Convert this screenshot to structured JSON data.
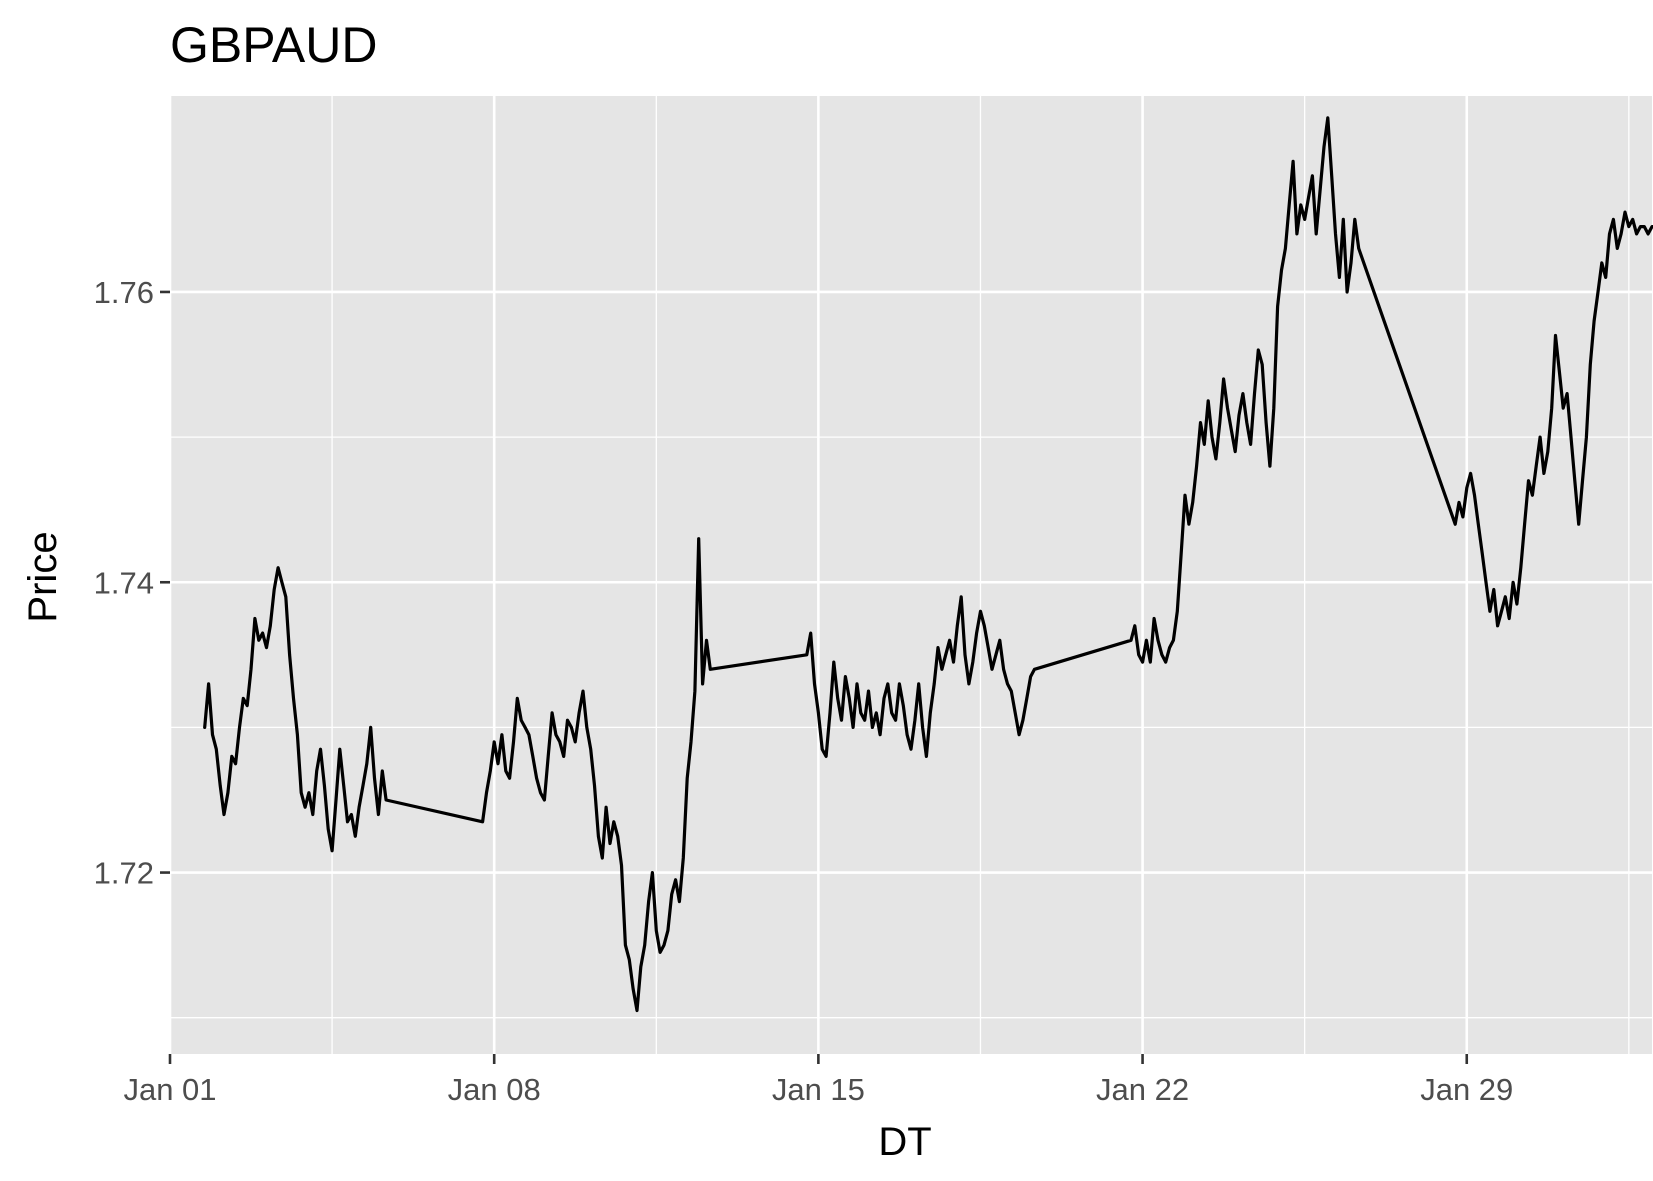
{
  "chart_data": {
    "type": "line",
    "title": "GBPAUD",
    "xlabel": "DT",
    "ylabel": "Price",
    "x_major_ticks": [
      "Jan 01",
      "Jan 08",
      "Jan 15",
      "Jan 22",
      "Jan 29"
    ],
    "x_minor_ticks": [
      "Jan 04 12:00",
      "Jan 11 12:00",
      "Jan 18 12:00",
      "Jan 25 12:00",
      "Feb 01 12:00"
    ],
    "y_major_ticks": [
      1.72,
      1.74,
      1.76
    ],
    "y_minor_ticks": [
      1.71,
      1.73,
      1.75
    ],
    "xlim": [
      "2024-01-01 00:00",
      "2024-02-02 00:00"
    ],
    "ylim": [
      1.7075,
      1.7735
    ],
    "grid": true,
    "legend": "none",
    "series": [
      {
        "x": [
          "2024-01-01 18:00",
          "2024-01-01 20:00",
          "2024-01-01 22:00",
          "2024-01-02 00:00",
          "2024-01-02 02:00",
          "2024-01-02 04:00",
          "2024-01-02 06:00",
          "2024-01-02 08:00",
          "2024-01-02 10:00",
          "2024-01-02 12:00",
          "2024-01-02 14:00",
          "2024-01-02 16:00",
          "2024-01-02 18:00",
          "2024-01-02 20:00",
          "2024-01-02 22:00",
          "2024-01-03 00:00",
          "2024-01-03 02:00",
          "2024-01-03 04:00",
          "2024-01-03 06:00",
          "2024-01-03 08:00",
          "2024-01-03 10:00",
          "2024-01-03 12:00",
          "2024-01-03 14:00",
          "2024-01-03 16:00",
          "2024-01-03 18:00",
          "2024-01-03 20:00",
          "2024-01-03 22:00",
          "2024-01-04 00:00",
          "2024-01-04 02:00",
          "2024-01-04 04:00",
          "2024-01-04 06:00",
          "2024-01-04 08:00",
          "2024-01-04 10:00",
          "2024-01-04 12:00",
          "2024-01-04 14:00",
          "2024-01-04 16:00",
          "2024-01-04 18:00",
          "2024-01-04 20:00",
          "2024-01-04 22:00",
          "2024-01-05 00:00",
          "2024-01-05 02:00",
          "2024-01-05 04:00",
          "2024-01-05 06:00",
          "2024-01-05 08:00",
          "2024-01-05 10:00",
          "2024-01-05 12:00",
          "2024-01-05 14:00",
          "2024-01-05 16:00",
          "2024-01-07 18:00",
          "2024-01-07 20:00",
          "2024-01-07 22:00",
          "2024-01-08 00:00",
          "2024-01-08 02:00",
          "2024-01-08 04:00",
          "2024-01-08 06:00",
          "2024-01-08 08:00",
          "2024-01-08 10:00",
          "2024-01-08 12:00",
          "2024-01-08 14:00",
          "2024-01-08 16:00",
          "2024-01-08 18:00",
          "2024-01-08 20:00",
          "2024-01-08 22:00",
          "2024-01-09 00:00",
          "2024-01-09 02:00",
          "2024-01-09 04:00",
          "2024-01-09 06:00",
          "2024-01-09 08:00",
          "2024-01-09 10:00",
          "2024-01-09 12:00",
          "2024-01-09 14:00",
          "2024-01-09 16:00",
          "2024-01-09 18:00",
          "2024-01-09 20:00",
          "2024-01-09 22:00",
          "2024-01-10 00:00",
          "2024-01-10 02:00",
          "2024-01-10 04:00",
          "2024-01-10 06:00",
          "2024-01-10 08:00",
          "2024-01-10 10:00",
          "2024-01-10 12:00",
          "2024-01-10 14:00",
          "2024-01-10 16:00",
          "2024-01-10 18:00",
          "2024-01-10 20:00",
          "2024-01-10 22:00",
          "2024-01-11 00:00",
          "2024-01-11 02:00",
          "2024-01-11 04:00",
          "2024-01-11 06:00",
          "2024-01-11 08:00",
          "2024-01-11 10:00",
          "2024-01-11 12:00",
          "2024-01-11 14:00",
          "2024-01-11 16:00",
          "2024-01-11 18:00",
          "2024-01-11 20:00",
          "2024-01-11 22:00",
          "2024-01-12 00:00",
          "2024-01-12 02:00",
          "2024-01-12 04:00",
          "2024-01-12 06:00",
          "2024-01-12 08:00",
          "2024-01-12 10:00",
          "2024-01-12 12:00",
          "2024-01-12 14:00",
          "2024-01-12 16:00",
          "2024-01-14 18:00",
          "2024-01-14 20:00",
          "2024-01-14 22:00",
          "2024-01-15 00:00",
          "2024-01-15 02:00",
          "2024-01-15 04:00",
          "2024-01-15 06:00",
          "2024-01-15 08:00",
          "2024-01-15 10:00",
          "2024-01-15 12:00",
          "2024-01-15 14:00",
          "2024-01-15 16:00",
          "2024-01-15 18:00",
          "2024-01-15 20:00",
          "2024-01-15 22:00",
          "2024-01-16 00:00",
          "2024-01-16 02:00",
          "2024-01-16 04:00",
          "2024-01-16 06:00",
          "2024-01-16 08:00",
          "2024-01-16 10:00",
          "2024-01-16 12:00",
          "2024-01-16 14:00",
          "2024-01-16 16:00",
          "2024-01-16 18:00",
          "2024-01-16 20:00",
          "2024-01-16 22:00",
          "2024-01-17 00:00",
          "2024-01-17 02:00",
          "2024-01-17 04:00",
          "2024-01-17 06:00",
          "2024-01-17 08:00",
          "2024-01-17 10:00",
          "2024-01-17 12:00",
          "2024-01-17 14:00",
          "2024-01-17 16:00",
          "2024-01-17 18:00",
          "2024-01-17 20:00",
          "2024-01-17 22:00",
          "2024-01-18 00:00",
          "2024-01-18 02:00",
          "2024-01-18 04:00",
          "2024-01-18 06:00",
          "2024-01-18 08:00",
          "2024-01-18 10:00",
          "2024-01-18 12:00",
          "2024-01-18 14:00",
          "2024-01-18 16:00",
          "2024-01-18 18:00",
          "2024-01-18 20:00",
          "2024-01-18 22:00",
          "2024-01-19 00:00",
          "2024-01-19 02:00",
          "2024-01-19 04:00",
          "2024-01-19 06:00",
          "2024-01-19 08:00",
          "2024-01-19 10:00",
          "2024-01-19 12:00",
          "2024-01-19 14:00",
          "2024-01-19 16:00",
          "2024-01-21 18:00",
          "2024-01-21 20:00",
          "2024-01-21 22:00",
          "2024-01-22 00:00",
          "2024-01-22 02:00",
          "2024-01-22 04:00",
          "2024-01-22 06:00",
          "2024-01-22 08:00",
          "2024-01-22 10:00",
          "2024-01-22 12:00",
          "2024-01-22 14:00",
          "2024-01-22 16:00",
          "2024-01-22 18:00",
          "2024-01-22 20:00",
          "2024-01-22 22:00",
          "2024-01-23 00:00",
          "2024-01-23 02:00",
          "2024-01-23 04:00",
          "2024-01-23 06:00",
          "2024-01-23 08:00",
          "2024-01-23 10:00",
          "2024-01-23 12:00",
          "2024-01-23 14:00",
          "2024-01-23 16:00",
          "2024-01-23 18:00",
          "2024-01-23 20:00",
          "2024-01-23 22:00",
          "2024-01-24 00:00",
          "2024-01-24 02:00",
          "2024-01-24 04:00",
          "2024-01-24 06:00",
          "2024-01-24 08:00",
          "2024-01-24 10:00",
          "2024-01-24 12:00",
          "2024-01-24 14:00",
          "2024-01-24 16:00",
          "2024-01-24 18:00",
          "2024-01-24 20:00",
          "2024-01-24 22:00",
          "2024-01-25 00:00",
          "2024-01-25 02:00",
          "2024-01-25 04:00",
          "2024-01-25 06:00",
          "2024-01-25 08:00",
          "2024-01-25 10:00",
          "2024-01-25 12:00",
          "2024-01-25 14:00",
          "2024-01-25 16:00",
          "2024-01-25 18:00",
          "2024-01-25 20:00",
          "2024-01-25 22:00",
          "2024-01-26 00:00",
          "2024-01-26 02:00",
          "2024-01-26 04:00",
          "2024-01-26 06:00",
          "2024-01-26 08:00",
          "2024-01-26 10:00",
          "2024-01-26 12:00",
          "2024-01-26 14:00",
          "2024-01-26 16:00",
          "2024-01-28 18:00",
          "2024-01-28 20:00",
          "2024-01-28 22:00",
          "2024-01-29 00:00",
          "2024-01-29 02:00",
          "2024-01-29 04:00",
          "2024-01-29 06:00",
          "2024-01-29 08:00",
          "2024-01-29 10:00",
          "2024-01-29 12:00",
          "2024-01-29 14:00",
          "2024-01-29 16:00",
          "2024-01-29 18:00",
          "2024-01-29 20:00",
          "2024-01-29 22:00",
          "2024-01-30 00:00",
          "2024-01-30 02:00",
          "2024-01-30 04:00",
          "2024-01-30 06:00",
          "2024-01-30 08:00",
          "2024-01-30 10:00",
          "2024-01-30 12:00",
          "2024-01-30 14:00",
          "2024-01-30 16:00",
          "2024-01-30 18:00",
          "2024-01-30 20:00",
          "2024-01-30 22:00",
          "2024-01-31 00:00",
          "2024-01-31 02:00",
          "2024-01-31 04:00",
          "2024-01-31 06:00",
          "2024-01-31 08:00",
          "2024-01-31 10:00",
          "2024-01-31 12:00",
          "2024-01-31 14:00",
          "2024-01-31 16:00",
          "2024-01-31 18:00",
          "2024-01-31 20:00",
          "2024-01-31 22:00",
          "2024-02-01 00:00",
          "2024-02-01 02:00",
          "2024-02-01 04:00",
          "2024-02-01 06:00",
          "2024-02-01 08:00",
          "2024-02-01 10:00",
          "2024-02-01 12:00",
          "2024-02-01 14:00",
          "2024-02-01 16:00",
          "2024-02-01 18:00",
          "2024-02-01 20:00",
          "2024-02-01 22:00",
          "2024-02-02 00:00",
          "2024-02-02 02:00"
        ],
        "y": [
          1.73,
          1.733,
          1.7295,
          1.7285,
          1.726,
          1.724,
          1.7255,
          1.728,
          1.7275,
          1.73,
          1.732,
          1.7315,
          1.734,
          1.7375,
          1.736,
          1.7365,
          1.7355,
          1.737,
          1.7395,
          1.741,
          1.74,
          1.739,
          1.735,
          1.732,
          1.7295,
          1.7255,
          1.7245,
          1.7255,
          1.724,
          1.727,
          1.7285,
          1.726,
          1.723,
          1.7215,
          1.725,
          1.7285,
          1.726,
          1.7235,
          1.724,
          1.7225,
          1.7245,
          1.726,
          1.7275,
          1.73,
          1.7265,
          1.724,
          1.727,
          1.725,
          1.7235,
          1.7255,
          1.727,
          1.729,
          1.7275,
          1.7295,
          1.727,
          1.7265,
          1.729,
          1.732,
          1.7305,
          1.73,
          1.7295,
          1.728,
          1.7265,
          1.7255,
          1.725,
          1.728,
          1.731,
          1.7295,
          1.729,
          1.728,
          1.7305,
          1.73,
          1.729,
          1.731,
          1.7325,
          1.73,
          1.7285,
          1.726,
          1.7225,
          1.721,
          1.7245,
          1.722,
          1.7235,
          1.7225,
          1.7205,
          1.715,
          1.714,
          1.712,
          1.7105,
          1.7135,
          1.715,
          1.718,
          1.72,
          1.716,
          1.7145,
          1.715,
          1.716,
          1.7185,
          1.7195,
          1.718,
          1.721,
          1.7265,
          1.729,
          1.7325,
          1.743,
          1.733,
          1.736,
          1.734,
          1.735,
          1.7365,
          1.733,
          1.731,
          1.7285,
          1.728,
          1.731,
          1.7345,
          1.732,
          1.7305,
          1.7335,
          1.732,
          1.73,
          1.733,
          1.731,
          1.7305,
          1.7325,
          1.73,
          1.731,
          1.7295,
          1.732,
          1.733,
          1.731,
          1.7305,
          1.733,
          1.7315,
          1.7295,
          1.7285,
          1.7305,
          1.733,
          1.73,
          1.728,
          1.731,
          1.733,
          1.7355,
          1.734,
          1.735,
          1.736,
          1.7345,
          1.737,
          1.739,
          1.735,
          1.733,
          1.7345,
          1.7365,
          1.738,
          1.737,
          1.7355,
          1.734,
          1.735,
          1.736,
          1.734,
          1.733,
          1.7325,
          1.731,
          1.7295,
          1.7305,
          1.732,
          1.7335,
          1.734,
          1.736,
          1.737,
          1.735,
          1.7345,
          1.736,
          1.7345,
          1.7375,
          1.736,
          1.735,
          1.7345,
          1.7355,
          1.736,
          1.738,
          1.742,
          1.746,
          1.744,
          1.7455,
          1.748,
          1.751,
          1.7495,
          1.7525,
          1.75,
          1.7485,
          1.751,
          1.754,
          1.752,
          1.7505,
          1.749,
          1.7515,
          1.753,
          1.751,
          1.7495,
          1.753,
          1.756,
          1.755,
          1.751,
          1.748,
          1.752,
          1.759,
          1.7615,
          1.763,
          1.766,
          1.769,
          1.764,
          1.766,
          1.765,
          1.7665,
          1.768,
          1.764,
          1.767,
          1.77,
          1.772,
          1.768,
          1.764,
          1.761,
          1.765,
          1.76,
          1.762,
          1.765,
          1.763,
          1.744,
          1.7455,
          1.7445,
          1.7465,
          1.7475,
          1.746,
          1.744,
          1.742,
          1.74,
          1.738,
          1.7395,
          1.737,
          1.738,
          1.739,
          1.7375,
          1.74,
          1.7385,
          1.741,
          1.744,
          1.747,
          1.746,
          1.748,
          1.75,
          1.7475,
          1.749,
          1.752,
          1.757,
          1.7545,
          1.752,
          1.753,
          1.75,
          1.747,
          1.744,
          1.747,
          1.75,
          1.755,
          1.758,
          1.76,
          1.762,
          1.761,
          1.764,
          1.765,
          1.763,
          1.764,
          1.7655,
          1.7645,
          1.765,
          1.764,
          1.7645,
          1.7645,
          1.764,
          1.7645,
          1.7645
        ]
      }
    ]
  }
}
